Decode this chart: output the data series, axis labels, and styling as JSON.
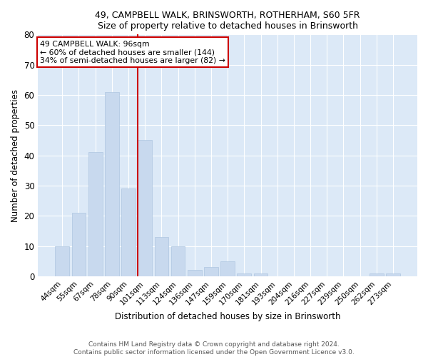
{
  "title1": "49, CAMPBELL WALK, BRINSWORTH, ROTHERHAM, S60 5FR",
  "title2": "Size of property relative to detached houses in Brinsworth",
  "xlabel": "Distribution of detached houses by size in Brinsworth",
  "ylabel": "Number of detached properties",
  "categories": [
    "44sqm",
    "55sqm",
    "67sqm",
    "78sqm",
    "90sqm",
    "101sqm",
    "113sqm",
    "124sqm",
    "136sqm",
    "147sqm",
    "159sqm",
    "170sqm",
    "181sqm",
    "193sqm",
    "204sqm",
    "216sqm",
    "227sqm",
    "239sqm",
    "250sqm",
    "262sqm",
    "273sqm"
  ],
  "values": [
    10,
    21,
    41,
    61,
    29,
    45,
    13,
    10,
    2,
    3,
    5,
    1,
    1,
    0,
    0,
    0,
    0,
    0,
    0,
    1,
    1
  ],
  "bar_color": "#c8d9ee",
  "bar_edgecolor": "#aec6e0",
  "bar_linewidth": 0.5,
  "vline_color": "#cc0000",
  "annotation_text": "49 CAMPBELL WALK: 96sqm\n← 60% of detached houses are smaller (144)\n34% of semi-detached houses are larger (82) →",
  "annotation_box_facecolor": "#ffffff",
  "annotation_box_edgecolor": "#cc0000",
  "ylim": [
    0,
    80
  ],
  "yticks": [
    0,
    10,
    20,
    30,
    40,
    50,
    60,
    70,
    80
  ],
  "footer": "Contains HM Land Registry data © Crown copyright and database right 2024.\nContains public sector information licensed under the Open Government Licence v3.0.",
  "fig_bg_color": "#ffffff",
  "plot_bg_color": "#dce9f7",
  "grid_color": "#ffffff"
}
